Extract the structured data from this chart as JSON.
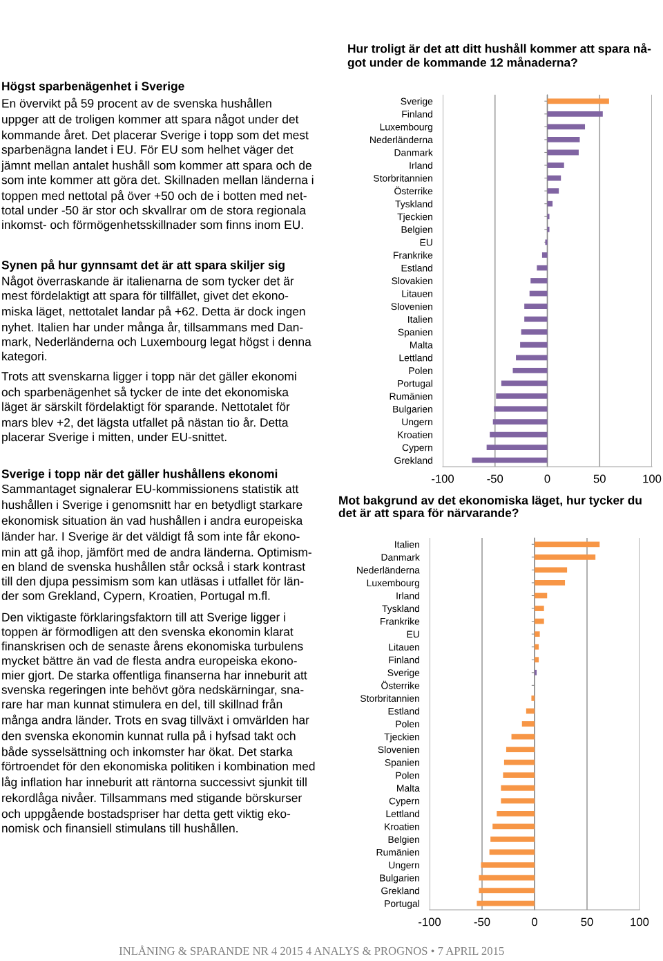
{
  "chart_data": [
    {
      "type": "other",
      "title": "Högst sparbenägenhet i Sverige",
      "annotations": [
        "En övervikt på 59 procent av de svenska hushållen\nuppger att de troligen kommer att spara något under det\nkommande året. Det placerar Sverige i topp som det mest\nsparbenägna landet i EU. För EU som helhet väger det\njämnt mellan antalet hushåll som kommer att spara och de\nsom inte kommer att göra det. Skillnaden mellan länderna i\ntoppen med nettotal på över +50 och de i botten med net-\ntotal under -50 är stor och skvallrar om de stora regionala\ninkomst- och förmögenhetsskillnader som finns inom EU."
      ]
    },
    {
      "type": "other",
      "title": "Synen på hur gynnsamt det är att spara skiljer sig",
      "annotations": [
        "Något överraskande är italienarna de som tycker det är\nmest fördelaktigt att spara för tillfället, givet det ekono-\nmiska läget, nettotalet landar på +62. Detta är dock ingen\nnyhet. Italien har under många år, tillsammans med Dan-\nmark, Nederländerna och Luxembourg legat högst i denna\nkategori.",
        "Trots att svenskarna ligger i topp när det gäller ekonomi\noch sparbenägenhet så tycker de inte det ekonomiska\nläget är särskilt fördelaktigt för sparande. Nettotalet för\nmars blev +2, det lägsta utfallet på nästan tio år. Detta\nplacerar Sverige i mitten, under EU-snittet."
      ]
    },
    {
      "type": "other",
      "title": "Sverige i topp när det gäller hushållens ekonomi",
      "annotations": [
        "Sammantaget signalerar EU-kommissionens statistik att\nhushållen i Sverige i genomsnitt har en betydligt starkare\nekonomisk situation än vad hushållen i andra europeiska\nländer har. I Sverige är det väldigt få som inte får ekono-\nmin att gå ihop, jämfört med de andra länderna. Optimism-\nen bland de svenska hushållen står också i stark kontrast\ntill den djupa pessimism som kan utläsas i utfallet för län-\nder som Grekland, Cypern, Kroatien, Portugal m.fl.",
        "Den viktigaste förklaringsfaktorn till att Sverige ligger i\ntoppen är förmodligen att den svenska ekonomin klarat\nfinanskrisen och de senaste årens ekonomiska turbulens\nmycket bättre än vad de flesta andra europeiska ekono-\nmier gjort. De starka offentliga finanserna har inneburit att\nsvenska regeringen inte behövt göra nedskärningar, sna-\nrare har man kunnat stimulera en del, till skillnad från\nmånga andra länder. Trots en svag tillväxt i omvärlden har\nden svenska ekonomin kunnat rulla på i hyfsad takt och\nbåde sysselsättning och inkomster har ökat. Det starka\nförtroendet för den ekonomiska politiken i kombination med\nlåg inflation har inneburit att räntorna successivt sjunkit till\nrekordlåga nivåer. Tillsammans med stigande börskurser\noch uppgående bostadspriser har detta gett viktig eko-\nnomisk och finansiell stimulans till hushållen."
      ]
    },
    {
      "type": "bar",
      "orientation": "horizontal",
      "title": "Hur troligt är det att ditt hushåll kommer att spara nå-\ngot under de kommande 12 månaderna?",
      "categories": [
        "Sverige",
        "Finland",
        "Luxembourg",
        "Nederländerna",
        "Danmark",
        "Irland",
        "Storbritannien",
        "Österrike",
        "Tyskland",
        "Tjeckien",
        "Belgien",
        "EU",
        "Frankrike",
        "Estland",
        "Slovakien",
        "Litauen",
        "Slovenien",
        "Italien",
        "Spanien",
        "Malta",
        "Lettland",
        "Polen",
        "Portugal",
        "Rumänien",
        "Bulgarien",
        "Ungern",
        "Kroatien",
        "Cypern",
        "Grekland"
      ],
      "values": [
        59,
        53,
        36,
        31,
        30,
        16,
        13,
        11,
        5,
        2,
        2,
        -2,
        -5,
        -10,
        -16,
        -17,
        -22,
        -22,
        -25,
        -26,
        -30,
        -33,
        -44,
        -49,
        -51,
        -52,
        -55,
        -58,
        -72
      ],
      "colors": [
        "#f79646",
        "#8064a2",
        "#8064a2",
        "#8064a2",
        "#8064a2",
        "#8064a2",
        "#8064a2",
        "#8064a2",
        "#8064a2",
        "#8064a2",
        "#8064a2",
        "#8064a2",
        "#8064a2",
        "#8064a2",
        "#8064a2",
        "#8064a2",
        "#8064a2",
        "#8064a2",
        "#8064a2",
        "#8064a2",
        "#8064a2",
        "#8064a2",
        "#8064a2",
        "#8064a2",
        "#8064a2",
        "#8064a2",
        "#8064a2",
        "#8064a2",
        "#8064a2"
      ],
      "xlim": [
        -100,
        100
      ],
      "xticks": [
        -100,
        -50,
        0,
        50,
        100
      ],
      "grid": "x"
    },
    {
      "type": "bar",
      "orientation": "horizontal",
      "title": "Mot bakgrund av det ekonomiska läget, hur tycker du\ndet är att spara för närvarande?",
      "categories": [
        "Italien",
        "Danmark",
        "Nederländerna",
        "Luxembourg",
        "Irland",
        "Tyskland",
        "Frankrike",
        "EU",
        "Litauen",
        "Finland",
        "Sverige",
        "Österrike",
        "Storbritannien",
        "Estland",
        "Polen",
        "Tjeckien",
        "Slovenien",
        "Spanien",
        "Polen",
        "Malta",
        "Cypern",
        "Lettland",
        "Kroatien",
        "Belgien",
        "Rumänien",
        "Ungern",
        "Bulgarien",
        "Grekland",
        "Portugal"
      ],
      "values": [
        62,
        58,
        31,
        29,
        12,
        9,
        9,
        5,
        4,
        4,
        2,
        0,
        -3,
        -8,
        -12,
        -22,
        -27,
        -29,
        -30,
        -32,
        -32,
        -36,
        -40,
        -42,
        -43,
        -51,
        -53,
        -53,
        -55
      ],
      "colors": [
        "#f79646",
        "#f79646",
        "#f79646",
        "#f79646",
        "#f79646",
        "#f79646",
        "#f79646",
        "#f79646",
        "#f79646",
        "#f79646",
        "#8064a2",
        "#f79646",
        "#f79646",
        "#f79646",
        "#f79646",
        "#f79646",
        "#f79646",
        "#f79646",
        "#f79646",
        "#f79646",
        "#f79646",
        "#f79646",
        "#f79646",
        "#f79646",
        "#f79646",
        "#f79646",
        "#f79646",
        "#f79646",
        "#f79646"
      ],
      "xlim": [
        -100,
        100
      ],
      "xticks": [
        -100,
        -50,
        0,
        50,
        100
      ],
      "grid": "x",
      "annotations": [
        "INLÅNING & SPARANDE NR 4 2015 4 ANALYS & PROGNOS • 7 APRIL 2015"
      ]
    }
  ]
}
